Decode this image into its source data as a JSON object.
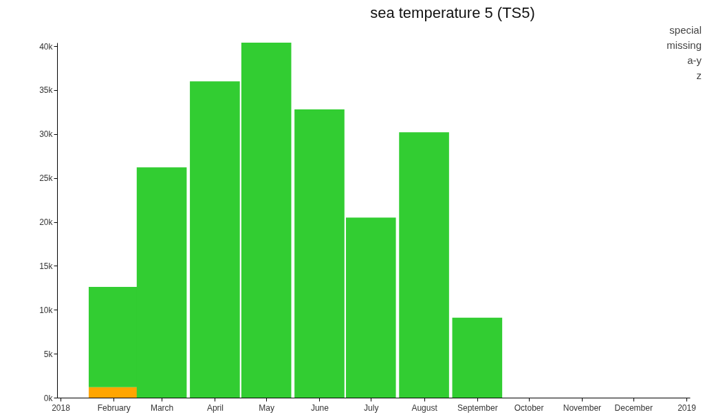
{
  "chart_data": {
    "type": "bar",
    "title": "sea temperature 5 (TS5)",
    "x": [
      "2018-02",
      "2018-03",
      "2018-04",
      "2018-05",
      "2018-06",
      "2018-07",
      "2018-08",
      "2018-09"
    ],
    "stacked": true,
    "series": [
      {
        "color": "#ffa500",
        "values": [
          1200,
          null,
          null,
          null,
          null,
          null,
          null,
          null
        ]
      },
      {
        "color": "#32cd32",
        "values": [
          11400,
          26200,
          36000,
          40400,
          32800,
          20500,
          30200,
          9100
        ]
      }
    ],
    "xlim": [
      "2018-01",
      "2019-01"
    ],
    "xticks": [
      {
        "value": "2018-01",
        "label": "2018"
      },
      {
        "value": "2018-02",
        "label": "February"
      },
      {
        "value": "2018-03",
        "label": "March"
      },
      {
        "value": "2018-04",
        "label": "April"
      },
      {
        "value": "2018-05",
        "label": "May"
      },
      {
        "value": "2018-06",
        "label": "June"
      },
      {
        "value": "2018-07",
        "label": "July"
      },
      {
        "value": "2018-08",
        "label": "August"
      },
      {
        "value": "2018-09",
        "label": "September"
      },
      {
        "value": "2018-10",
        "label": "October"
      },
      {
        "value": "2018-11",
        "label": "November"
      },
      {
        "value": "2018-12",
        "label": "December"
      },
      {
        "value": "2019-01",
        "label": "2019"
      }
    ],
    "ylim": [
      0,
      40400
    ],
    "yticks": [
      {
        "value": 0,
        "label": "0k"
      },
      {
        "value": 5000,
        "label": "5k"
      },
      {
        "value": 10000,
        "label": "10k"
      },
      {
        "value": 15000,
        "label": "15k"
      },
      {
        "value": 20000,
        "label": "20k"
      },
      {
        "value": 25000,
        "label": "25k"
      },
      {
        "value": 30000,
        "label": "30k"
      },
      {
        "value": 35000,
        "label": "35k"
      },
      {
        "value": 40000,
        "label": "40k"
      }
    ],
    "annotations": [
      "special",
      "missing",
      "a-y",
      "z"
    ]
  }
}
